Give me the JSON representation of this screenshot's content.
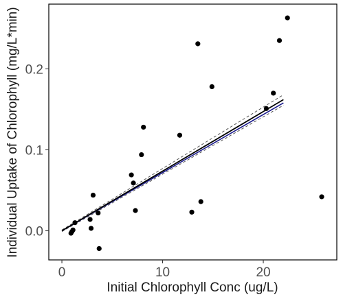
{
  "chart_data": {
    "type": "scatter",
    "xlabel": "Initial Chlorophyll Conc (ug/L)",
    "ylabel": "Individual Uptake of Chlorophyll (mg/L*min)",
    "xlim": [
      -1.3,
      27.3
    ],
    "ylim": [
      -0.036,
      0.28
    ],
    "xticks": [
      0,
      10,
      20
    ],
    "yticks": [
      0.0,
      0.1,
      0.2
    ],
    "ytick_labels": [
      "0.0",
      "0.1",
      "0.2"
    ],
    "grid": false,
    "points": [
      {
        "x": 0.9,
        "y": -0.003
      },
      {
        "x": 1.0,
        "y": -0.001
      },
      {
        "x": 1.1,
        "y": 0.001
      },
      {
        "x": 1.3,
        "y": 0.01
      },
      {
        "x": 2.8,
        "y": 0.014
      },
      {
        "x": 2.9,
        "y": 0.003
      },
      {
        "x": 3.1,
        "y": 0.044
      },
      {
        "x": 3.6,
        "y": 0.022
      },
      {
        "x": 3.7,
        "y": -0.022
      },
      {
        "x": 6.9,
        "y": 0.069
      },
      {
        "x": 7.1,
        "y": 0.059
      },
      {
        "x": 7.3,
        "y": 0.025
      },
      {
        "x": 7.9,
        "y": 0.094
      },
      {
        "x": 8.1,
        "y": 0.128
      },
      {
        "x": 11.7,
        "y": 0.118
      },
      {
        "x": 12.9,
        "y": 0.023
      },
      {
        "x": 13.5,
        "y": 0.231
      },
      {
        "x": 13.8,
        "y": 0.036
      },
      {
        "x": 14.9,
        "y": 0.178
      },
      {
        "x": 20.3,
        "y": 0.151
      },
      {
        "x": 21.0,
        "y": 0.17
      },
      {
        "x": 21.6,
        "y": 0.235
      },
      {
        "x": 22.4,
        "y": 0.263
      },
      {
        "x": 25.8,
        "y": 0.042
      }
    ],
    "fit_line": {
      "x": [
        0,
        22
      ],
      "y": [
        0.0,
        0.162
      ],
      "color": "#000000"
    },
    "fit_line_secondary": {
      "x": [
        0,
        22
      ],
      "y": [
        0.0,
        0.158
      ],
      "color": "#1a1a8c"
    },
    "confidence_band": {
      "x": [
        0,
        22
      ],
      "upper": [
        0.001,
        0.168
      ],
      "lower": [
        -0.001,
        0.155
      ]
    }
  }
}
